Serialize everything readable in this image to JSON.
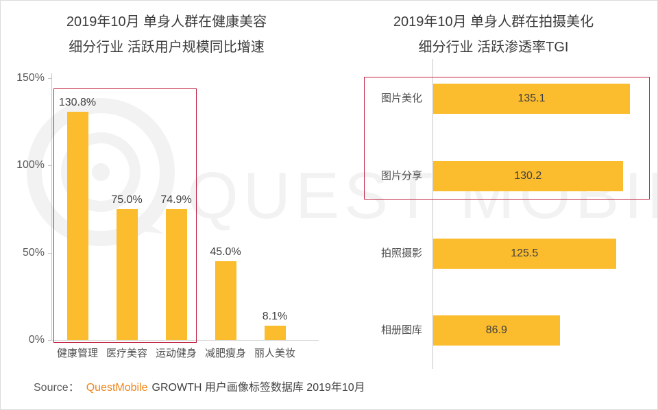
{
  "watermark": {
    "text": "QUEST MOBILE"
  },
  "source": {
    "prefix": "Source：",
    "brand": "QuestMobile",
    "suffix": "GROWTH 用户画像标签数据库 2019年10月"
  },
  "colors": {
    "bar_yellow": "#FBBC2D",
    "highlight_red": "#C0203F",
    "brand_orange": "#F08519",
    "title_text": "#3C3C3C",
    "axis_text": "#595959",
    "axis_line": "#C6C6C6",
    "watermark_gray": "#F2F2F2"
  },
  "chart_data": [
    {
      "type": "bar",
      "title_line1": "2019年10月 单身人群在健康美容",
      "title_line2": "细分行业 活跃用户规模同比增速",
      "categories": [
        "健康管理",
        "医疗美容",
        "运动健身",
        "减肥瘦身",
        "丽人美妆"
      ],
      "values": [
        130.8,
        75.0,
        74.9,
        45.0,
        8.1
      ],
      "value_labels": [
        "130.8%",
        "75.0%",
        "74.9%",
        "45.0%",
        "8.1%"
      ],
      "ylim": [
        0,
        150
      ],
      "y_axis": [
        {
          "label": "150%",
          "value": 150
        },
        {
          "label": "100%",
          "value": 100
        },
        {
          "label": "50%",
          "value": 50
        },
        {
          "label": "0%",
          "value": 0
        }
      ],
      "grid": "off",
      "highlighted_categories": [
        "健康管理",
        "医疗美容",
        "运动健身"
      ]
    },
    {
      "type": "bar",
      "orientation": "horizontal",
      "title_line1": "2019年10月 单身人群在拍摄美化",
      "title_line2": "细分行业 活跃渗透率TGI",
      "categories": [
        "图片美化",
        "图片分享",
        "拍照摄影",
        "相册图库"
      ],
      "values": [
        135.1,
        130.2,
        125.5,
        86.9
      ],
      "value_labels": [
        "135.1",
        "130.2",
        "125.5",
        "86.9"
      ],
      "xlim": [
        0,
        145
      ],
      "grid": "off",
      "highlighted_categories": [
        "图片美化",
        "图片分享"
      ]
    }
  ]
}
